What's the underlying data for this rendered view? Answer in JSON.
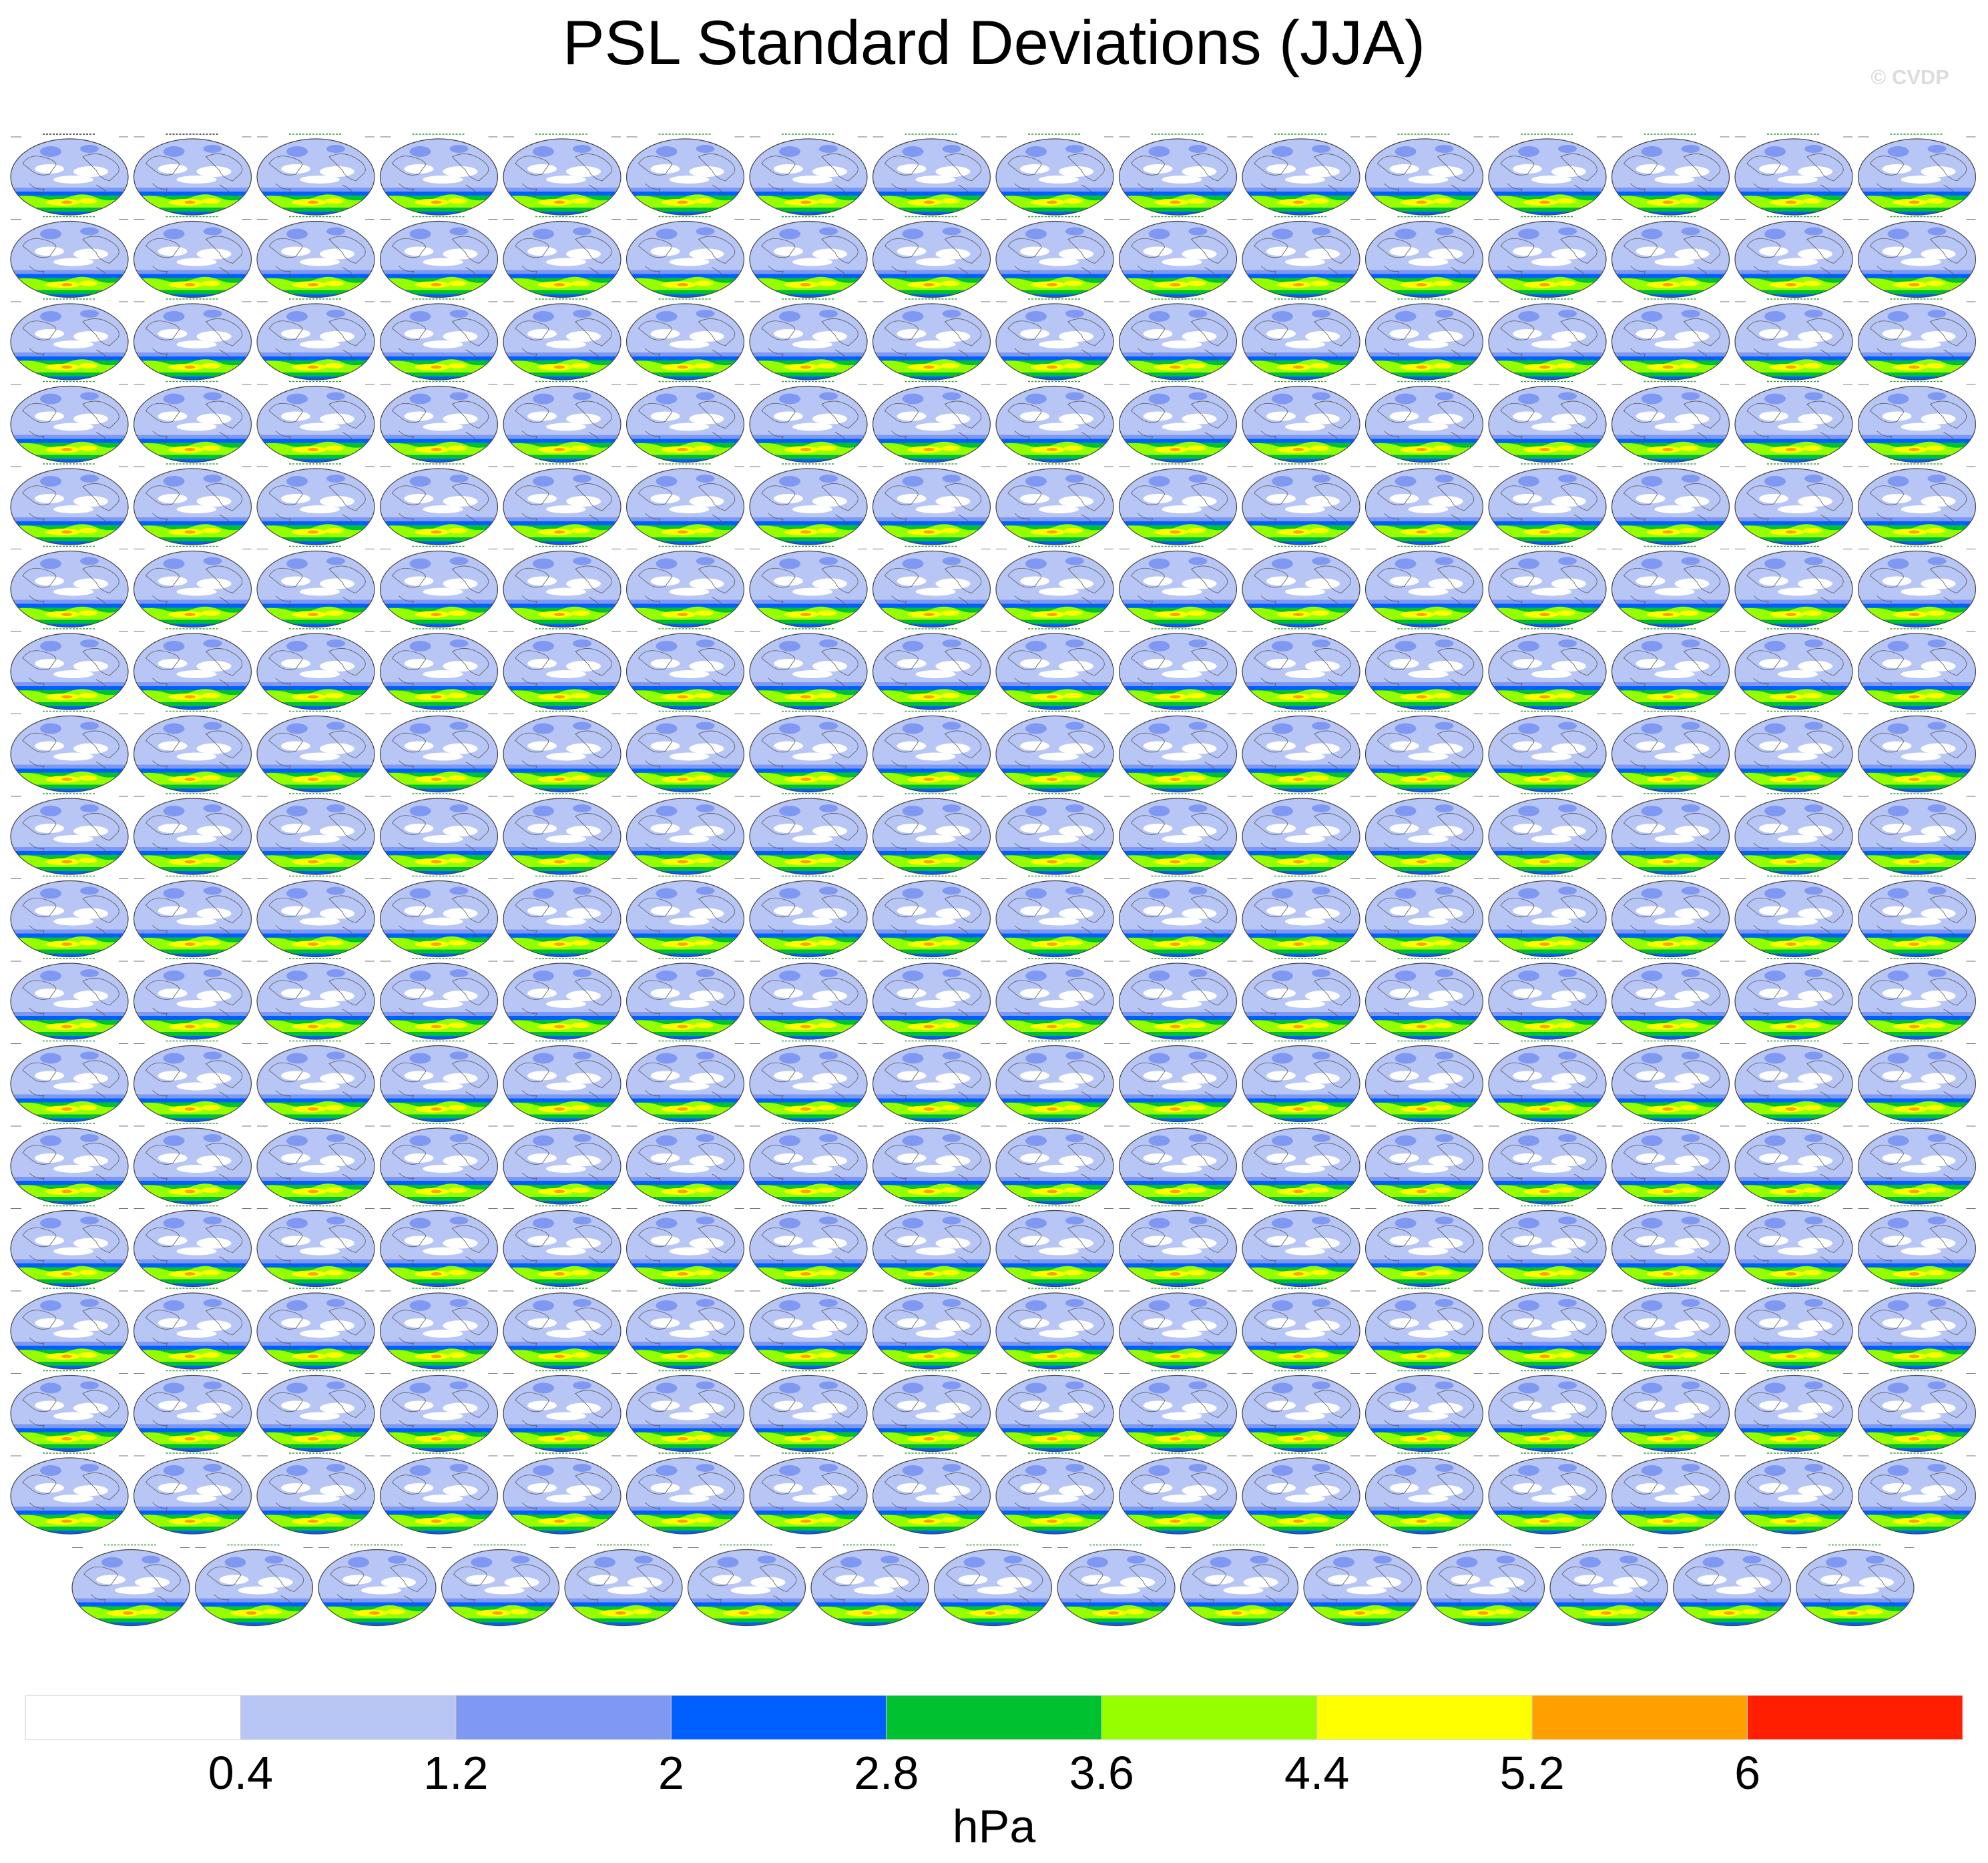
{
  "header": {
    "title": "PSL Standard Deviations (JJA)",
    "watermark": "© CVDP"
  },
  "chart_data": {
    "type": "heatmap",
    "title": "PSL Standard Deviations (JJA)",
    "description_kind": "small-multiples of global map panels (ensemble members), each colored by PSL standard deviation",
    "panel_layout": {
      "rows_full": 17,
      "cols_full": 16,
      "last_row_panels": 15
    },
    "panel_titles_sample": [
      "ERA5",
      "ERA5_1",
      "ACCESS-ESM1-5",
      "CanESM5",
      "CESM1",
      "CESM2"
    ],
    "panel_title_colors": {
      "obs": "#000000",
      "model_a": "#1a7a1a",
      "model_b": "#1a7a1a"
    },
    "colorbar": {
      "unit": "hPa",
      "tick_labels": [
        "0.4",
        "1.2",
        "2",
        "2.8",
        "3.6",
        "4.4",
        "5.2",
        "6"
      ],
      "boundaries": [
        0.4,
        1.2,
        2,
        2.8,
        3.6,
        4.4,
        5.2,
        6
      ],
      "colors": [
        "#ffffff",
        "#b8c6f5",
        "#7f99f2",
        "#0060ff",
        "#00c230",
        "#95ff00",
        "#ffff00",
        "#ffa000",
        "#ff1e00"
      ]
    }
  }
}
